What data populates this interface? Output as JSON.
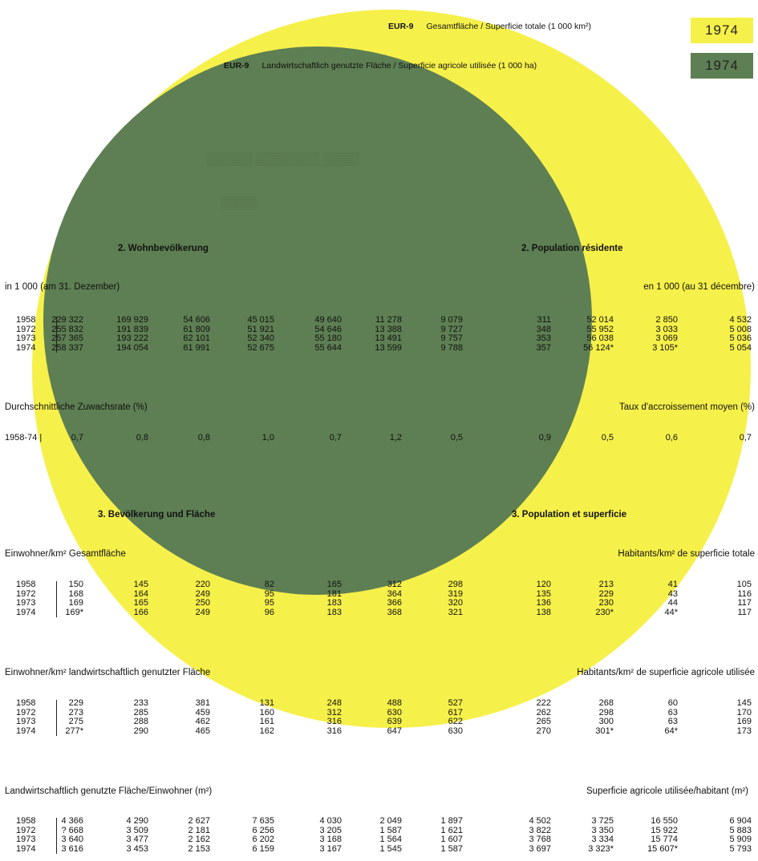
{
  "legend": {
    "total": {
      "code": "EUR-9",
      "label": "Gesamtfläche / Superficie totale (1 000 km²)",
      "year": "1974",
      "color": "#f6f04a"
    },
    "agri": {
      "code": "EUR-9",
      "label": "Landwirtschaftlich genutzte Fläche / Superficie agricole utilisée (1 000 ha)",
      "year": "1974",
      "color": "#5e7f53"
    }
  },
  "sections": {
    "pop_de": "2. Wohnbevölkerung",
    "pop_fr": "2. Population résidente",
    "popunit_de": "in 1 000 (am 31. Dezember)",
    "popunit_fr": "en 1 000 (au 31 décembre)",
    "growth_de": "Durchschnittliche Zuwachsrate (%)",
    "growth_fr": "Taux d'accroissement moyen (%)",
    "density_head_de": "3. Bevölkerung und Fläche",
    "density_head_fr": "3. Population et superficie",
    "dens_total_de": "Einwohner/km² Gesamtfläche",
    "dens_total_fr": "Habitants/km² de superficie totale",
    "dens_agri_de": "Einwohner/km² landwirtschaftlich genutzter Fläche",
    "dens_agri_fr": "Habitants/km² de superficie agricole utilisée",
    "agri_per_de": "Landwirtschaftlich genutzte Fläche/Einwohner (m²)",
    "agri_per_fr": "Superficie agricole utilisée/habitant (m²)"
  },
  "tables": [
    {
      "years": [
        "1958",
        "1972",
        "1973",
        "1974"
      ],
      "columns": [
        [
          "229 322",
          "255 832",
          "257 365",
          "258 337"
        ],
        [
          "169 929",
          "191 839",
          "193 222",
          "194 054"
        ],
        [
          "54 606",
          "61 809",
          "62 101",
          "61 991"
        ],
        [
          "45 015",
          "51 921",
          "52 340",
          "52 675"
        ],
        [
          "49 640",
          "54 646",
          "55 180",
          "55 644"
        ],
        [
          "11 278",
          "13 388",
          "13 491",
          "13 599"
        ],
        [
          "9 079",
          "9 727",
          "9 757",
          "9 788"
        ],
        [
          "311",
          "348",
          "353",
          "357"
        ],
        [
          "52 014",
          "55 952",
          "56 038",
          "56 124*"
        ],
        [
          "2 850",
          "3 033",
          "3 069",
          "3 105*"
        ],
        [
          "4 532",
          "5 008",
          "5 036",
          "5 054"
        ]
      ]
    },
    {
      "years": [
        "1958-74 |"
      ],
      "columns": [
        [
          "0,7"
        ],
        [
          "0,8"
        ],
        [
          "0,8"
        ],
        [
          "1,0"
        ],
        [
          "0,7"
        ],
        [
          "1,2"
        ],
        [
          "0,5"
        ],
        [
          "0,9"
        ],
        [
          "0,5"
        ],
        [
          "0,6"
        ],
        [
          "0,7"
        ]
      ]
    },
    {
      "years": [
        "1958",
        "1972",
        "1973",
        "1974"
      ],
      "columns": [
        [
          "150",
          "168",
          "169",
          "169*"
        ],
        [
          "145",
          "164",
          "165",
          "166"
        ],
        [
          "220",
          "249",
          "250",
          "249"
        ],
        [
          "82",
          "95",
          "95",
          "96"
        ],
        [
          "165",
          "181",
          "183",
          "183"
        ],
        [
          "312",
          "364",
          "366",
          "368"
        ],
        [
          "298",
          "319",
          "320",
          "321"
        ],
        [
          "120",
          "135",
          "136",
          "138"
        ],
        [
          "213",
          "229",
          "230",
          "230*"
        ],
        [
          "41",
          "43",
          "44",
          "44*"
        ],
        [
          "105",
          "116",
          "117",
          "117"
        ]
      ]
    },
    {
      "years": [
        "1958",
        "1972",
        "1973",
        "1974"
      ],
      "columns": [
        [
          "229",
          "273",
          "275",
          "277*"
        ],
        [
          "233",
          "285",
          "288",
          "290"
        ],
        [
          "381",
          "459",
          "462",
          "465"
        ],
        [
          "131",
          "160",
          "161",
          "162"
        ],
        [
          "248",
          "312",
          "316",
          "316"
        ],
        [
          "488",
          "630",
          "639",
          "647"
        ],
        [
          "527",
          "617",
          "622",
          "630"
        ],
        [
          "222",
          "262",
          "265",
          "270"
        ],
        [
          "268",
          "298",
          "300",
          "301*"
        ],
        [
          "60",
          "63",
          "63",
          "64*"
        ],
        [
          "145",
          "170",
          "169",
          "173"
        ]
      ]
    },
    {
      "years": [
        "1958",
        "1972",
        "1973",
        "1974"
      ],
      "columns": [
        [
          "4 366",
          "? 668",
          "3 640",
          "3 616"
        ],
        [
          "4 290",
          "3 509",
          "3 477",
          "3 453"
        ],
        [
          "2 627",
          "2 181",
          "2 162",
          "2 153"
        ],
        [
          "7 635",
          "6 256",
          "6 202",
          "6 159"
        ],
        [
          "4 030",
          "3 205",
          "3 168",
          "3 167"
        ],
        [
          "2 049",
          "1 587",
          "1 564",
          "1 545"
        ],
        [
          "1 897",
          "1 621",
          "1 607",
          "1 587"
        ],
        [
          "4 502",
          "3 822",
          "3 768",
          "3 697"
        ],
        [
          "3 725",
          "3 350",
          "3 334",
          "3 323*"
        ],
        [
          "16 550",
          "15 922",
          "15 774",
          "15 607*"
        ],
        [
          "6 904",
          "5 883",
          "5 909",
          "5 793"
        ]
      ]
    }
  ]
}
